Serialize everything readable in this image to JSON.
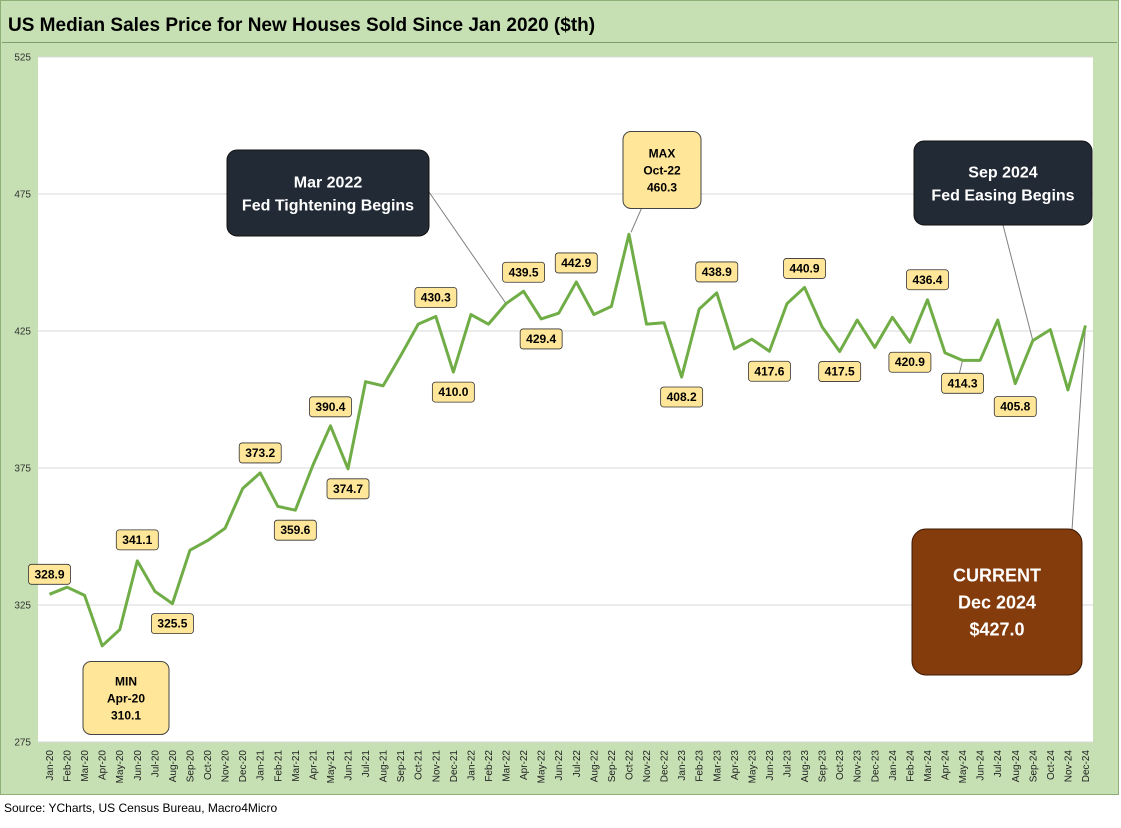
{
  "title": "US Median Sales Price for New Houses Sold Since Jan 2020 ($th)",
  "source": "Source: YCharts, US Census Bureau, Macro4Micro",
  "colors": {
    "line": "#70ad47",
    "frame": "#c6e0b4",
    "label_fill": "#ffe699",
    "dark_box": "#222a35",
    "current_box": "#843c0c",
    "grid": "#d9d9d9"
  },
  "chart_data": {
    "type": "line",
    "title": "US Median Sales Price for New Houses Sold Since Jan 2020 ($th)",
    "xlabel": "",
    "ylabel": "",
    "ylim": [
      275,
      525
    ],
    "yticks": [
      275,
      325,
      375,
      425,
      475,
      525
    ],
    "grid": true,
    "categories": [
      "Jan-20",
      "Feb-20",
      "Mar-20",
      "Apr-20",
      "May-20",
      "Jun-20",
      "Jul-20",
      "Aug-20",
      "Sep-20",
      "Oct-20",
      "Nov-20",
      "Dec-20",
      "Jan-21",
      "Feb-21",
      "Mar-21",
      "Apr-21",
      "May-21",
      "Jun-21",
      "Jul-21",
      "Aug-21",
      "Sep-21",
      "Oct-21",
      "Nov-21",
      "Dec-21",
      "Jan-22",
      "Feb-22",
      "Mar-22",
      "Apr-22",
      "May-22",
      "Jun-22",
      "Jul-22",
      "Aug-22",
      "Sep-22",
      "Oct-22",
      "Nov-22",
      "Dec-22",
      "Jan-23",
      "Feb-23",
      "Mar-23",
      "Apr-23",
      "May-23",
      "Jun-23",
      "Jul-23",
      "Aug-23",
      "Sep-23",
      "Oct-23",
      "Nov-23",
      "Dec-23",
      "Jan-24",
      "Feb-24",
      "Mar-24",
      "Apr-24",
      "May-24",
      "Jun-24",
      "Jul-24",
      "Aug-24",
      "Sep-24",
      "Oct-24",
      "Nov-24",
      "Dec-24"
    ],
    "values": [
      328.9,
      331.5,
      328.5,
      310.1,
      316.0,
      341.1,
      330.0,
      325.5,
      345.0,
      348.5,
      353.0,
      367.5,
      373.2,
      361.0,
      359.6,
      376.0,
      390.4,
      374.7,
      406.5,
      405.0,
      416.0,
      427.5,
      430.3,
      410.0,
      431.0,
      427.5,
      435.0,
      439.5,
      429.4,
      431.5,
      442.9,
      431.0,
      434.0,
      460.3,
      427.5,
      428.0,
      408.2,
      433.0,
      438.9,
      418.5,
      422.0,
      417.6,
      435.0,
      440.9,
      426.5,
      417.5,
      429.0,
      419.0,
      430.0,
      420.9,
      436.4,
      417.0,
      414.3,
      414.3,
      429.0,
      405.8,
      421.5,
      425.5,
      403.5,
      427.0
    ],
    "data_labels": [
      {
        "index": 0,
        "text": "328.9"
      },
      {
        "index": 5,
        "text": "341.1"
      },
      {
        "index": 7,
        "text": "325.5"
      },
      {
        "index": 12,
        "text": "373.2"
      },
      {
        "index": 14,
        "text": "359.6"
      },
      {
        "index": 16,
        "text": "390.4"
      },
      {
        "index": 17,
        "text": "374.7"
      },
      {
        "index": 22,
        "text": "430.3"
      },
      {
        "index": 23,
        "text": "410.0"
      },
      {
        "index": 27,
        "text": "439.5"
      },
      {
        "index": 28,
        "text": "429.4"
      },
      {
        "index": 30,
        "text": "442.9"
      },
      {
        "index": 36,
        "text": "408.2"
      },
      {
        "index": 38,
        "text": "438.9"
      },
      {
        "index": 41,
        "text": "417.6"
      },
      {
        "index": 43,
        "text": "440.9"
      },
      {
        "index": 45,
        "text": "417.5"
      },
      {
        "index": 49,
        "text": "420.9"
      },
      {
        "index": 50,
        "text": "436.4"
      },
      {
        "index": 52,
        "text": "414.3"
      },
      {
        "index": 55,
        "text": "405.8"
      }
    ],
    "annotations": {
      "min": {
        "index": 3,
        "lines": [
          "MIN",
          "Apr-20",
          "310.1"
        ]
      },
      "max": {
        "index": 33,
        "lines": [
          "MAX",
          "Oct-22",
          "460.3"
        ]
      },
      "tightening": {
        "index": 26,
        "lines": [
          "Mar 2022",
          "Fed Tightening Begins"
        ]
      },
      "easing": {
        "index": 56,
        "lines": [
          "Sep 2024",
          "Fed Easing Begins"
        ]
      },
      "current": {
        "index": 59,
        "lines": [
          "CURRENT",
          "Dec 2024",
          "$427.0"
        ]
      }
    }
  }
}
